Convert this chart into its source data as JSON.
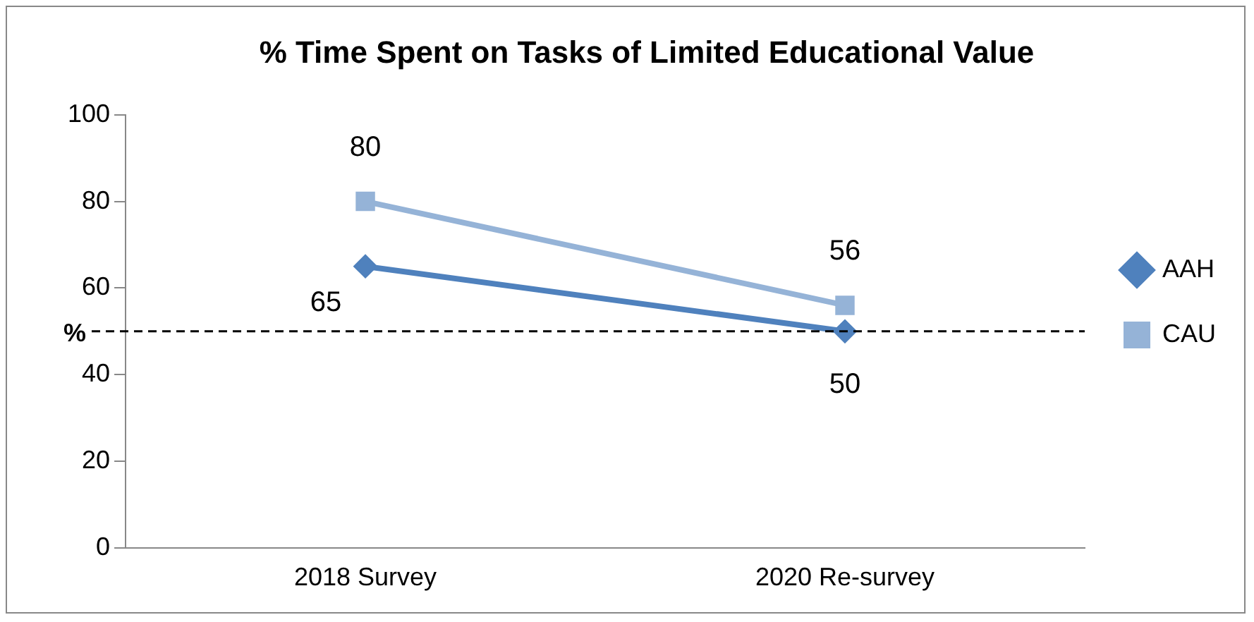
{
  "chart_data": {
    "type": "line",
    "title": "% Time Spent on Tasks of Limited Educational Value",
    "ylabel": "%",
    "categories": [
      "2018 Survey",
      "2020 Re-survey"
    ],
    "series": [
      {
        "name": "AAH",
        "color": "#4f81bd",
        "values": [
          65,
          50
        ],
        "marker": "diamond"
      },
      {
        "name": "CAU",
        "color": "#95b3d7",
        "values": [
          80,
          56
        ],
        "marker": "square"
      }
    ],
    "ylim": [
      0,
      100
    ],
    "yticks": [
      0,
      20,
      40,
      60,
      80,
      100
    ],
    "grid": false,
    "legend": "right",
    "data_labels": true,
    "ref_lines": [
      {
        "axis": "y",
        "value": 50,
        "color": "#000000",
        "line_style": "dashed"
      }
    ]
  }
}
